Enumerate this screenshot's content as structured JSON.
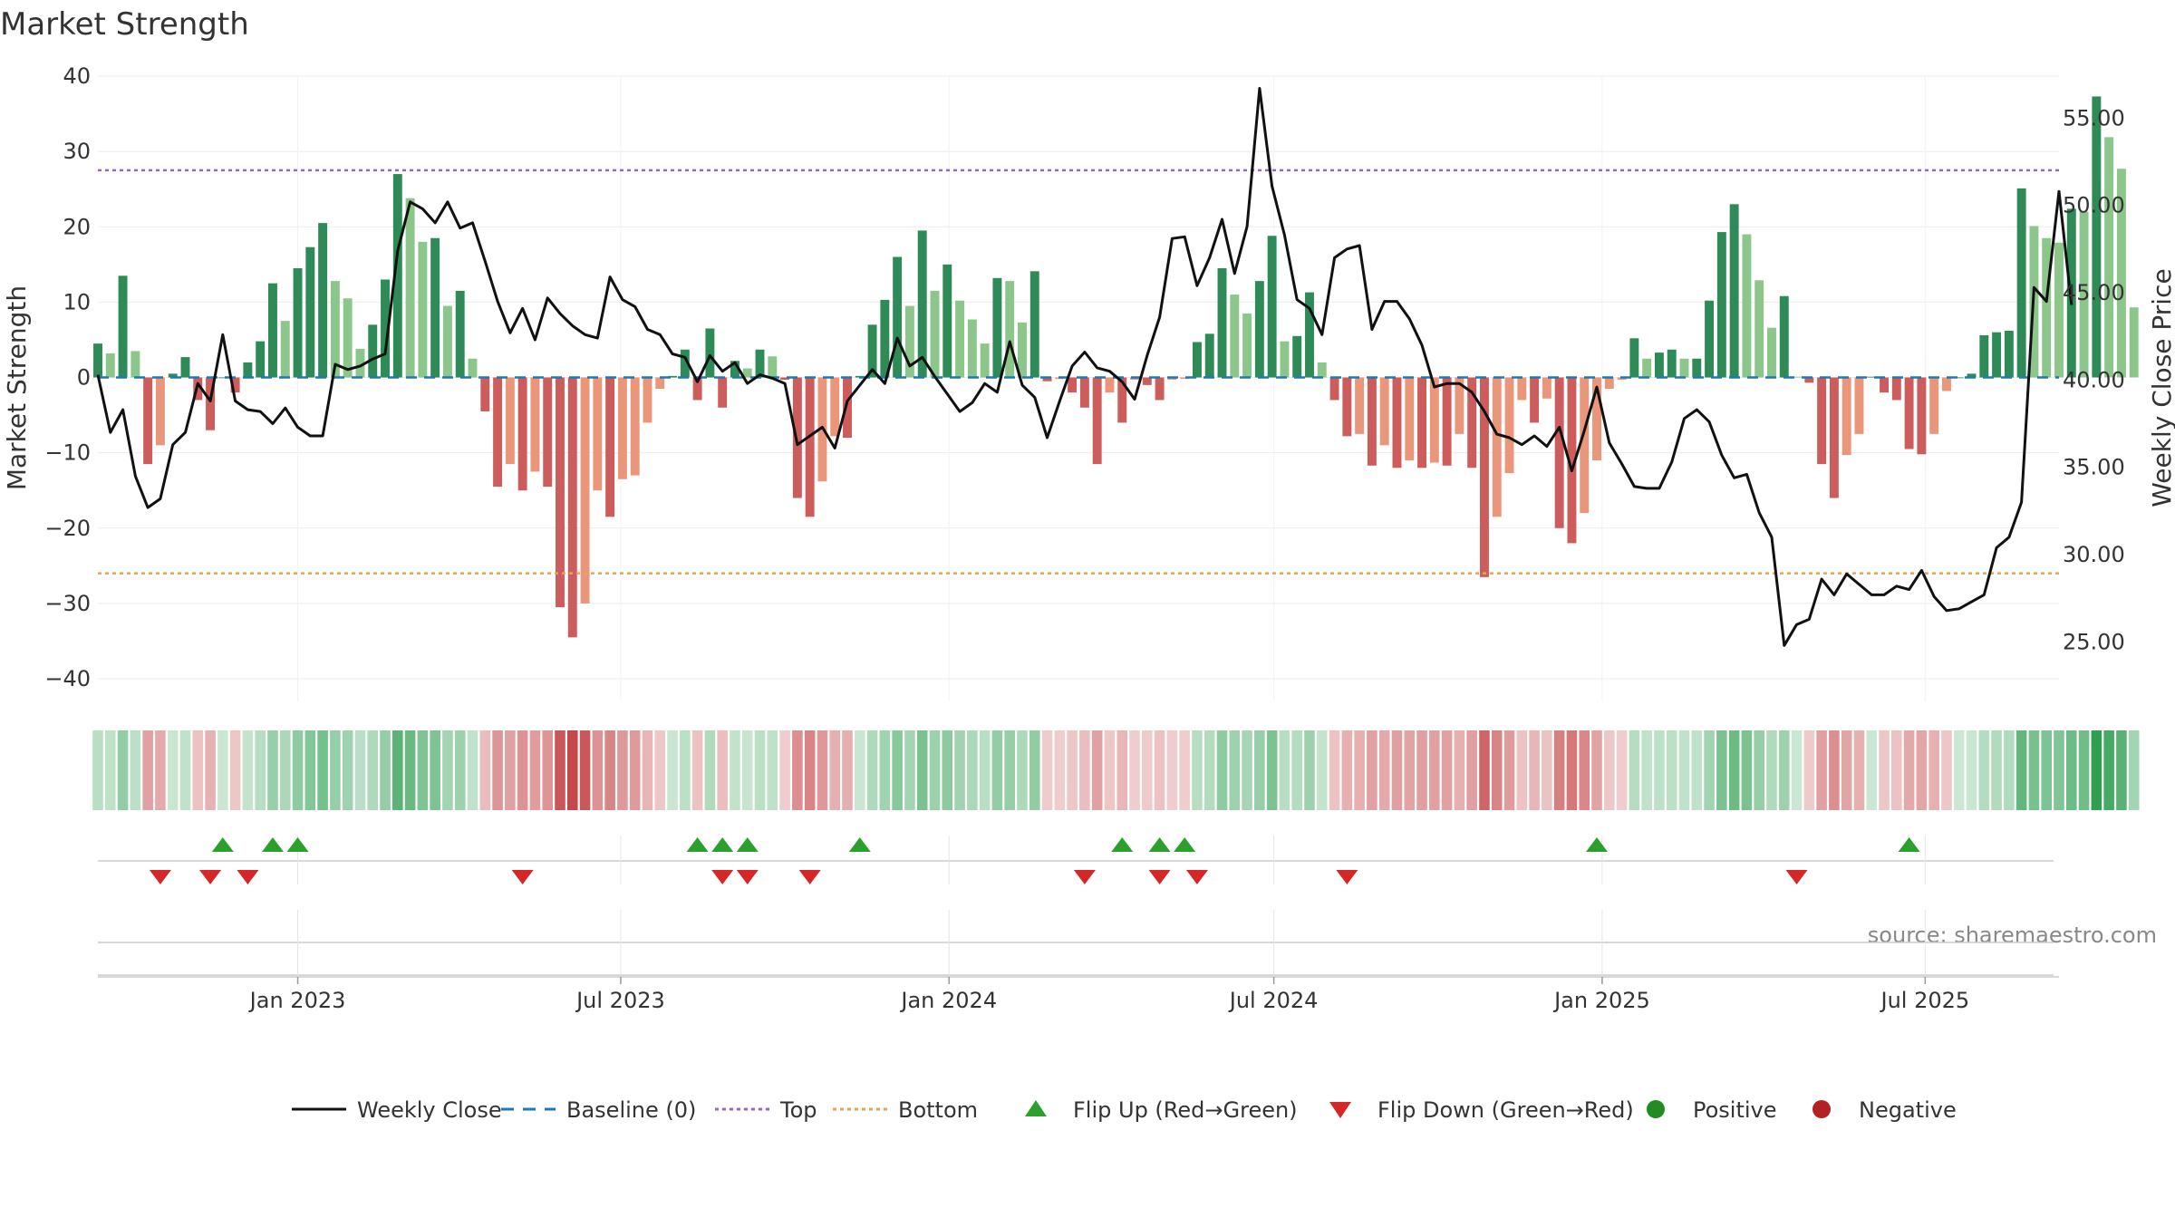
{
  "chart_data": {
    "type": "bar",
    "title": "Market Strength",
    "ylabel": "Market Strength",
    "y2label": "Weekly Close Price",
    "ylim": [
      -43,
      40
    ],
    "y2lim": [
      21.6,
      57.4
    ],
    "yticks": [
      40,
      30,
      20,
      10,
      0,
      -10,
      -20,
      -30,
      -40
    ],
    "ytick_labels": [
      "40",
      "30",
      "20",
      "10",
      "0",
      "−10",
      "−20",
      "−30",
      "−40"
    ],
    "y2ticks": [
      55,
      50,
      45,
      40,
      35,
      30,
      25
    ],
    "y2tick_labels": [
      "55.00",
      "50.00",
      "45.00",
      "40.00",
      "35.00",
      "30.00",
      "25.00"
    ],
    "x_start": "2022-09-11",
    "x_end": "2025-09-14",
    "xticks": [
      "2023-01-01",
      "2023-07-01",
      "2024-01-01",
      "2024-07-01",
      "2025-01-01",
      "2025-07-01"
    ],
    "xtick_labels": [
      "Jan 2023",
      "Jul 2023",
      "Jan 2024",
      "Jul 2024",
      "Jan 2025",
      "Jul 2025"
    ],
    "top_level": 27.5,
    "bottom_level": -26,
    "baseline": 0,
    "source": "source: sharemaestro.com",
    "colors": {
      "pos_strong": "#2e8b57",
      "pos_weak": "#8cc68a",
      "neg_strong": "#cd5c5c",
      "neg_weak": "#e9967a",
      "price": "#111111",
      "baseline": "#1f77b4",
      "top": "#9467bd",
      "bottom": "#f0a050",
      "flip_up": "#2ca02c",
      "flip_down": "#d62728",
      "positive": "#228b22",
      "negative": "#b22222"
    },
    "strength": [
      4.5,
      3.2,
      13.5,
      3.5,
      -11.5,
      -9,
      0.5,
      2.7,
      -3,
      -7,
      0,
      -2,
      2,
      4.8,
      12.5,
      7.5,
      14.5,
      17.3,
      20.5,
      12.8,
      10.5,
      3.8,
      7,
      13,
      27,
      23.8,
      18,
      18.5,
      9.5,
      11.5,
      2.5,
      -4.5,
      -14.5,
      -11.5,
      -15,
      -12.5,
      -14.5,
      -30.5,
      -34.5,
      -30,
      -15,
      -18.5,
      -13.5,
      -13,
      -6,
      -1.5,
      0.2,
      3.7,
      -3,
      6.5,
      -4,
      2.2,
      1.2,
      3.7,
      2.8,
      -0.3,
      -16,
      -18.5,
      -13.8,
      -7.8,
      -8,
      0.2,
      7,
      10.3,
      16,
      9.5,
      19.5,
      11.5,
      15,
      10.2,
      7.7,
      4.5,
      13.2,
      12.8,
      7.3,
      14.1,
      -0.5,
      -0.2,
      -2,
      -4,
      -11.5,
      -2,
      -6,
      -0.3,
      -1,
      -3,
      -0.3,
      -0.2,
      4.7,
      5.8,
      14.5,
      11,
      8.5,
      12.8,
      18.8,
      4.8,
      5.5,
      11.3,
      2,
      -3,
      -7.8,
      -7.5,
      -11.7,
      -9,
      -12,
      -11,
      -12,
      -11.3,
      -11.7,
      -7.5,
      -12,
      -26.5,
      -18.5,
      -12.7,
      -3,
      -6,
      -2.8,
      -20,
      -22,
      -18,
      -11,
      -1.5,
      -0.3,
      5.2,
      2.5,
      3.3,
      3.7,
      2.5,
      2.5,
      10.2,
      19.3,
      23,
      19,
      12.9,
      6.6,
      10.8,
      0.1,
      -0.7,
      -11.5,
      -16,
      -10.3,
      -7.5,
      0.1,
      -2,
      -3,
      -9.5,
      -10.2,
      -7.5,
      -1.8,
      0,
      0.5,
      5.6,
      6,
      6.2,
      25.1,
      20.1,
      18.5,
      17.9,
      22.4,
      22,
      37.3,
      31.9,
      27.7,
      9.3
    ],
    "close": [
      40.3,
      37,
      38.3,
      34.5,
      32.7,
      33.2,
      36.3,
      37,
      39.8,
      38.8,
      42.6,
      38.8,
      38.3,
      38.2,
      37.5,
      38.4,
      37.3,
      36.8,
      36.8,
      40.9,
      40.6,
      40.8,
      41.2,
      41.5,
      47.4,
      50.2,
      49.8,
      49,
      50.2,
      48.7,
      49,
      46.8,
      44.5,
      42.7,
      44.1,
      42.3,
      44.7,
      43.8,
      43.1,
      42.6,
      42.4,
      45.9,
      44.6,
      44.2,
      42.9,
      42.6,
      41.5,
      41.3,
      39.9,
      41.4,
      40.5,
      41,
      39.8,
      40.3,
      40.1,
      39.8,
      36.3,
      36.8,
      37.3,
      36.1,
      38.8,
      39.7,
      40.6,
      39.8,
      42.4,
      40.8,
      41.3,
      40.2,
      39.2,
      38.2,
      38.7,
      39.8,
      39.3,
      42.2,
      39.7,
      39,
      36.7,
      38.8,
      40.8,
      41.6,
      40.7,
      40.5,
      39.9,
      38.9,
      41.4,
      43.6,
      48.1,
      48.2,
      45.4,
      47,
      49.2,
      46.1,
      48.8,
      56.7,
      51.1,
      48.3,
      44.6,
      44.1,
      42.6,
      47,
      47.5,
      47.7,
      42.9,
      44.5,
      44.5,
      43.5,
      42,
      39.6,
      39.8,
      39.8,
      39.3,
      38.2,
      36.9,
      36.7,
      36.3,
      36.8,
      36.2,
      37.3,
      34.8,
      37.1,
      39.6,
      36.4,
      35.2,
      33.9,
      33.8,
      33.8,
      35.3,
      37.8,
      38.3,
      37.6,
      35.7,
      34.4,
      34.6,
      32.4,
      31,
      24.8,
      26,
      26.3,
      28.6,
      27.7,
      28.9,
      28.3,
      27.7,
      27.7,
      28.2,
      28,
      29.1,
      27.6,
      26.8,
      26.9,
      27.3,
      27.7,
      30.4,
      31,
      33,
      45.3,
      44.5,
      50.8,
      44.3
    ],
    "flip_up": [
      "2022-11-20",
      "2022-12-18",
      "2023-01-01",
      "2023-08-13",
      "2023-08-27",
      "2023-09-10",
      "2023-11-12",
      "2024-04-07",
      "2024-04-28",
      "2024-05-12",
      "2024-12-29",
      "2025-06-22"
    ],
    "flip_down": [
      "2022-10-16",
      "2022-11-13",
      "2022-12-04",
      "2023-05-07",
      "2023-08-27",
      "2023-09-10",
      "2023-10-15",
      "2024-03-17",
      "2024-04-28",
      "2024-05-19",
      "2024-08-11",
      "2025-04-20"
    ],
    "legend": [
      {
        "key": "price",
        "label": "Weekly Close"
      },
      {
        "key": "baseline",
        "label": "Baseline (0)"
      },
      {
        "key": "top",
        "label": "Top"
      },
      {
        "key": "bottom",
        "label": "Bottom"
      },
      {
        "key": "flip_up",
        "label": "Flip Up (Red→Green)"
      },
      {
        "key": "flip_down",
        "label": "Flip Down (Green→Red)"
      },
      {
        "key": "positive",
        "label": "Positive"
      },
      {
        "key": "negative",
        "label": "Negative"
      }
    ]
  }
}
